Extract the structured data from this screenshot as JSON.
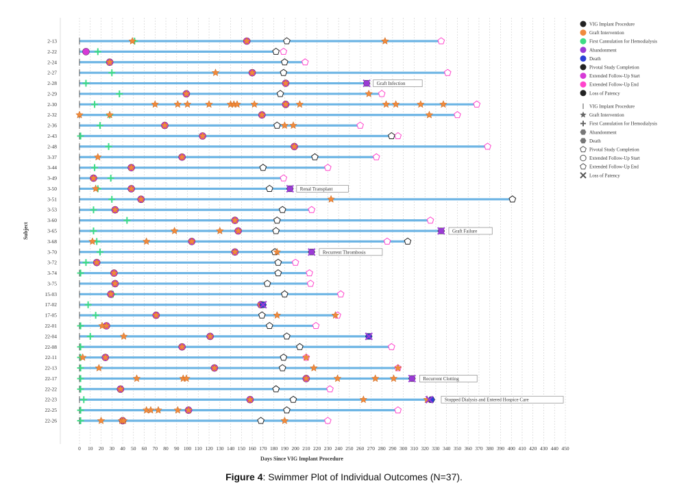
{
  "caption": {
    "prefix": "Figure 4",
    "text": ": Swimmer Plot of Individual Outcomes (N=37)."
  },
  "colors": {
    "bar": "#6cb4e4",
    "graft": "#f08a3c",
    "cannulation": "#3ddc84",
    "abandonment": "#9b3ad6",
    "death": "#2a3fd6",
    "pivotal": "#222222",
    "ext_start": "#d63ad6",
    "ext_end": "#ff44cc",
    "grid": "#cccccc"
  },
  "chart_data": {
    "type": "swimmer",
    "xlabel": "Days Since VIG Implant Procedure",
    "ylabel": "Subject",
    "xlim": [
      0,
      450
    ],
    "xticks": [
      0,
      10,
      20,
      30,
      40,
      50,
      60,
      70,
      80,
      90,
      100,
      110,
      120,
      130,
      140,
      150,
      160,
      170,
      180,
      190,
      200,
      210,
      220,
      230,
      240,
      250,
      260,
      270,
      280,
      290,
      300,
      310,
      320,
      330,
      340,
      350,
      360,
      370,
      380,
      390,
      400,
      410,
      420,
      430,
      440,
      450
    ],
    "legend": {
      "position": "top-right",
      "colors_title": [
        {
          "label": "VIG Implant Procedure",
          "color": "#222222"
        },
        {
          "label": "Graft Intervention",
          "color": "#f08a3c"
        },
        {
          "label": "First Cannulation for Hemodialysis",
          "color": "#3ddc84"
        },
        {
          "label": "Abandonment",
          "color": "#9b3ad6"
        },
        {
          "label": "Death",
          "color": "#2a3fd6"
        },
        {
          "label": "Pivotal Study Completion",
          "color": "#222222"
        },
        {
          "label": "Extended Follow-Up Start",
          "color": "#d63ad6"
        },
        {
          "label": "Extended Follow-Up End",
          "color": "#ff44cc"
        },
        {
          "label": "Loss of Patency",
          "color": "#222222"
        }
      ],
      "markers": [
        {
          "label": "VIG Implant Procedure",
          "shape": "bar"
        },
        {
          "label": "Graft Intervention",
          "shape": "star"
        },
        {
          "label": "First Cannulation for Hemodialysis",
          "shape": "plus"
        },
        {
          "label": "Abandonment",
          "shape": "hexagon"
        },
        {
          "label": "Death",
          "shape": "hexagon"
        },
        {
          "label": "Pivotal Study Completion",
          "shape": "pentagon"
        },
        {
          "label": "Extended Follow-Up Start",
          "shape": "circle"
        },
        {
          "label": "Extended Follow-Up End",
          "shape": "pentagon"
        },
        {
          "label": "Loss of Patency",
          "shape": "x"
        }
      ]
    },
    "subjects": [
      {
        "id": "2-13",
        "end": 335,
        "cannulation": 51,
        "grafts": [
          49,
          155,
          283
        ],
        "ext_start": [
          155
        ],
        "pivotal": 192,
        "ext_end": 335
      },
      {
        "id": "2-22",
        "end": 182,
        "cannulation": 17,
        "grafts": [],
        "ext_start": [
          6
        ],
        "pivotal": 182,
        "ext_end": 189
      },
      {
        "id": "2-24",
        "end": 209,
        "cannulation": 27,
        "grafts": [
          28
        ],
        "ext_start": [
          28
        ],
        "pivotal": 190,
        "ext_end": 209
      },
      {
        "id": "2-27",
        "end": 341,
        "cannulation": 30,
        "grafts": [
          126,
          160
        ],
        "ext_start": [
          160
        ],
        "pivotal": 189,
        "ext_end": 341
      },
      {
        "id": "2-28",
        "end": 267,
        "cannulation": 6,
        "grafts": [
          191
        ],
        "ext_start": [
          191
        ],
        "abandonment": 266,
        "loss": 266,
        "annotation": "Graft Infection",
        "annotation_at": 267
      },
      {
        "id": "2-29",
        "end": 280,
        "cannulation": 37,
        "grafts": [
          99,
          268
        ],
        "ext_start": [
          99
        ],
        "pivotal": 186,
        "ext_end": 280
      },
      {
        "id": "2-30",
        "end": 368,
        "cannulation": 14,
        "grafts": [
          70,
          91,
          100,
          120,
          140,
          143,
          146,
          162,
          191,
          204,
          284,
          293,
          316,
          337
        ],
        "ext_start": [
          191
        ],
        "ext_end": 368
      },
      {
        "id": "2-32",
        "end": 350,
        "cannulation": 28,
        "grafts": [
          0,
          28,
          169,
          324
        ],
        "ext_start": [
          169
        ],
        "ext_end": 350
      },
      {
        "id": "2-36",
        "end": 260,
        "cannulation": 19,
        "grafts": [
          79,
          190,
          198
        ],
        "ext_start": [
          79
        ],
        "pivotal": 183,
        "ext_end": 260
      },
      {
        "id": "2-43",
        "end": 295,
        "cannulation": 1,
        "grafts": [
          114
        ],
        "ext_start": [
          114
        ],
        "pivotal": 289,
        "ext_end": 295
      },
      {
        "id": "2-48",
        "end": 378,
        "cannulation": 27,
        "grafts": [
          199
        ],
        "ext_start": [
          199
        ],
        "ext_end": 378
      },
      {
        "id": "3-37",
        "end": 275,
        "cannulation": 95,
        "grafts": [
          17,
          95
        ],
        "ext_start": [
          95
        ],
        "pivotal": 218,
        "ext_end": 275
      },
      {
        "id": "3-44",
        "end": 230,
        "cannulation": 14,
        "grafts": [
          48
        ],
        "ext_start": [
          48
        ],
        "pivotal": 170,
        "ext_end": 230
      },
      {
        "id": "3-49",
        "end": 189,
        "cannulation": 29,
        "grafts": [
          13
        ],
        "ext_start": [
          13
        ],
        "ext_end": 189
      },
      {
        "id": "3-50",
        "end": 195,
        "cannulation": 17,
        "grafts": [
          15,
          48
        ],
        "ext_start": [
          48
        ],
        "pivotal": 176,
        "abandonment": 195,
        "loss": 195,
        "annotation": "Renal Transplant",
        "annotation_at": 196
      },
      {
        "id": "3-51",
        "end": 401,
        "cannulation": 30,
        "grafts": [
          57,
          233
        ],
        "ext_start": [
          57
        ],
        "pivotal": 401
      },
      {
        "id": "3-53",
        "end": 215,
        "cannulation": 13,
        "grafts": [
          33
        ],
        "ext_start": [
          33
        ],
        "pivotal": 188,
        "ext_end": 215
      },
      {
        "id": "3-60",
        "end": 325,
        "cannulation": 44,
        "grafts": [
          144
        ],
        "ext_start": [
          144
        ],
        "pivotal": 183,
        "ext_end": 325
      },
      {
        "id": "3-65",
        "end": 336,
        "cannulation": 13,
        "grafts": [
          88,
          130,
          147
        ],
        "ext_start": [
          147
        ],
        "pivotal": 182,
        "abandonment": 335,
        "loss": 335,
        "annotation": "Graft Failure",
        "annotation_at": 337
      },
      {
        "id": "3-68",
        "end": 304,
        "cannulation": 16,
        "grafts": [
          12,
          62,
          104
        ],
        "ext_start": [
          104
        ],
        "pivotal": 304,
        "ext_end": 285
      },
      {
        "id": "3-70",
        "end": 216,
        "cannulation": 19,
        "grafts": [
          144,
          183
        ],
        "ext_start": [
          144
        ],
        "pivotal": 181,
        "abandonment": 215,
        "loss": 215,
        "annotation": "Recurrent Thrombosis",
        "annotation_at": 217
      },
      {
        "id": "3-72",
        "end": 200,
        "cannulation": 6,
        "grafts": [
          16
        ],
        "ext_start": [
          16
        ],
        "pivotal": 184,
        "ext_end": 200
      },
      {
        "id": "3-74",
        "end": 213,
        "cannulation": 1,
        "grafts": [
          32
        ],
        "ext_start": [
          32
        ],
        "pivotal": 184,
        "ext_end": 213
      },
      {
        "id": "3-75",
        "end": 214,
        "cannulation": 33,
        "grafts": [
          33
        ],
        "ext_start": [
          33
        ],
        "pivotal": 174,
        "ext_end": 214
      },
      {
        "id": "15-03",
        "end": 242,
        "cannulation": 31,
        "grafts": [
          29
        ],
        "ext_start": [
          29
        ],
        "pivotal": 190,
        "ext_end": 242
      },
      {
        "id": "17-02",
        "end": 170,
        "cannulation": 8,
        "grafts": [
          168
        ],
        "ext_start": [
          168
        ],
        "death": 170,
        "loss": 170
      },
      {
        "id": "17-05",
        "end": 239,
        "cannulation": 15,
        "grafts": [
          71,
          183,
          237
        ],
        "ext_start": [
          71
        ],
        "pivotal": 169,
        "ext_end": 239
      },
      {
        "id": "22-01",
        "end": 219,
        "cannulation": 1,
        "grafts": [
          21,
          25
        ],
        "ext_start": [
          25
        ],
        "pivotal": 176,
        "ext_end": 219
      },
      {
        "id": "22-04",
        "end": 268,
        "cannulation": 10,
        "grafts": [
          41,
          121
        ],
        "ext_start": [
          121
        ],
        "pivotal": 192,
        "death": 268,
        "loss": 268
      },
      {
        "id": "22-08",
        "end": 289,
        "cannulation": 1,
        "grafts": [
          95
        ],
        "ext_start": [
          95
        ],
        "pivotal": 204,
        "ext_end": 289
      },
      {
        "id": "22-11",
        "end": 210,
        "cannulation": 1,
        "grafts": [
          3,
          24,
          210
        ],
        "ext_start": [
          24
        ],
        "pivotal": 189,
        "ext_end": 210
      },
      {
        "id": "22-13",
        "end": 295,
        "cannulation": 1,
        "grafts": [
          18,
          125,
          217,
          295
        ],
        "ext_start": [
          125
        ],
        "pivotal": 188,
        "ext_end": 295
      },
      {
        "id": "22-17",
        "end": 308,
        "cannulation": 1,
        "grafts": [
          53,
          96,
          99,
          210,
          239,
          274,
          291
        ],
        "ext_start": [
          210
        ],
        "abandonment": 308,
        "loss": 308,
        "annotation": "Recurrent Clotting",
        "annotation_at": 310
      },
      {
        "id": "22-22",
        "end": 232,
        "cannulation": 1,
        "grafts": [
          38
        ],
        "ext_start": [
          38
        ],
        "pivotal": 182,
        "ext_end": 232
      },
      {
        "id": "22-23",
        "end": 327,
        "cannulation": 4,
        "grafts": [
          158,
          263,
          322
        ],
        "ext_start": [
          158
        ],
        "pivotal": 198,
        "death": 326,
        "loss": 324,
        "annotation": "Stopped Dialysis and Entered Hospice Care",
        "annotation_at": 330
      },
      {
        "id": "22-25",
        "end": 295,
        "cannulation": 1,
        "grafts": [
          62,
          66,
          73,
          91,
          101
        ],
        "ext_start": [
          101
        ],
        "pivotal": 192,
        "ext_end": 295
      },
      {
        "id": "22-26",
        "end": 230,
        "cannulation": 1,
        "grafts": [
          20,
          39,
          41,
          190
        ],
        "ext_start": [
          40
        ],
        "pivotal": 168,
        "ext_end": 230
      }
    ]
  }
}
